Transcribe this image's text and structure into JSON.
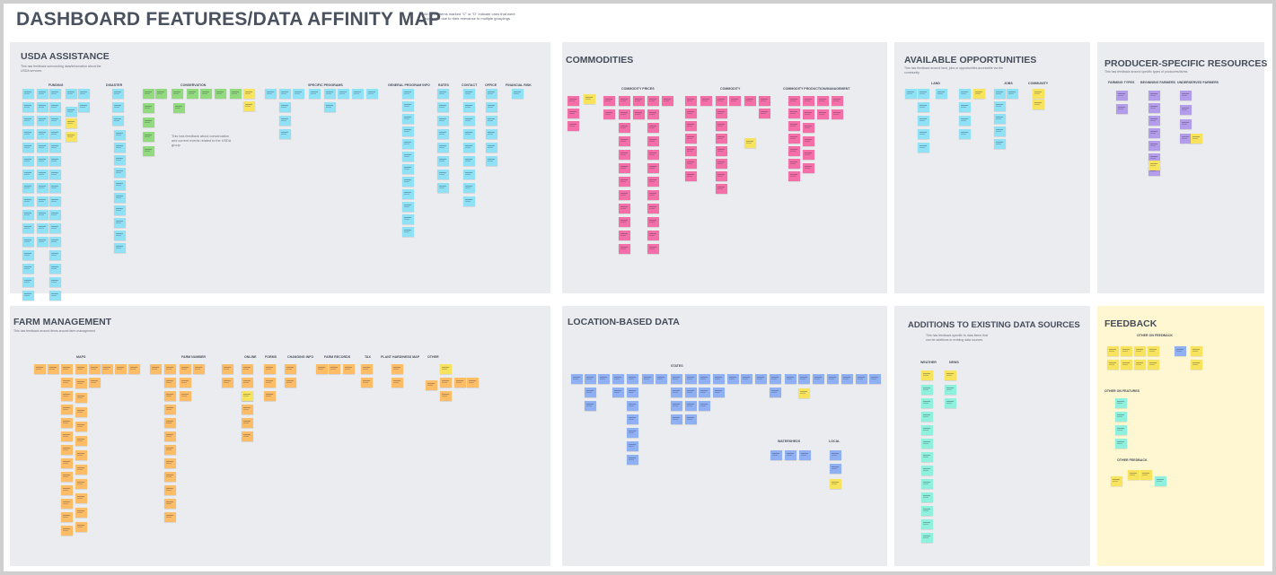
{
  "board": {
    "title": "DASHBOARD FEATURES/DATA AFFINITY MAP",
    "note": "All Hints: Items marked \"C\" or \"D\" indicate ones that were duplicated due to their relevance to multiple groupings"
  },
  "colors": {
    "blue": "#8fe1f6",
    "pink": "#f46fa8",
    "green": "#92da7e",
    "yellow": "#f8e45c",
    "purple": "#b39ce9",
    "orange": "#fcbd66",
    "periwinkle": "#8fb1f4",
    "teal": "#8ef0dd",
    "section_gray": "#ebecef",
    "feedback_bg": "#fff7d1"
  },
  "sections": [
    {
      "key": "usda",
      "title": "USDA ASSISTANCE",
      "desc": "This has feedback surrounding data/information about the USDA services",
      "inner_note": "This has feedback about conservation and current events related to the USDA group",
      "groups": [
        "FUNDING",
        "DISASTER",
        "CONSERVATION",
        "SPECIFIC PROGRAMS",
        "GENERAL PROGRAM INFO",
        "RATES",
        "CONTACT",
        "OFFICE",
        "FINANCIAL RISK"
      ]
    },
    {
      "key": "commodities",
      "title": "COMMODITIES",
      "desc": "",
      "groups": [
        "COMMODITY PRICES",
        "COMMODITY",
        "COMMODITY PRODUCTION/MANAGEMENT"
      ]
    },
    {
      "key": "opportunities",
      "title": "AVAILABLE OPPORTUNITIES",
      "desc": "This has feedback around land, jobs or opportunities accessible via the community",
      "groups": [
        "LAND",
        "JOBS",
        "COMMUNITY"
      ]
    },
    {
      "key": "producer",
      "title": "PRODUCER-SPECIFIC RESOURCES",
      "desc": "This has feedback around specific types of producers/farms",
      "groups": [
        "FARMING TYPES",
        "BEGINNING FARMERS",
        "UNDERSERVED FARMERS"
      ]
    },
    {
      "key": "farm",
      "title": "FARM MANAGEMENT",
      "desc": "This has feedback around items around farm management",
      "groups": [
        "MAPS",
        "FARM NUMBER",
        "ONLINE",
        "FORMS",
        "CHANGING INFO",
        "FARM RECORDS",
        "TAX",
        "PLANT HARDINESS MAP",
        "OTHER"
      ]
    },
    {
      "key": "location",
      "title": "LOCATION-BASED DATA",
      "desc": "",
      "groups": [
        "STATES",
        "WATERSHEDS",
        "LOCAL"
      ]
    },
    {
      "key": "additions",
      "title": "ADDITIONS TO EXISTING DATA SOURCES",
      "desc": "This has feedback specific to data items that can be additions to existing data sources",
      "groups": [
        "WEATHER",
        "NEWS"
      ]
    },
    {
      "key": "feedback",
      "title": "FEEDBACK",
      "desc": "",
      "groups": [
        "OTHER ON FEEDBACK",
        "OTHER ON FEATURES",
        "OTHER FEEDBACK"
      ]
    }
  ]
}
